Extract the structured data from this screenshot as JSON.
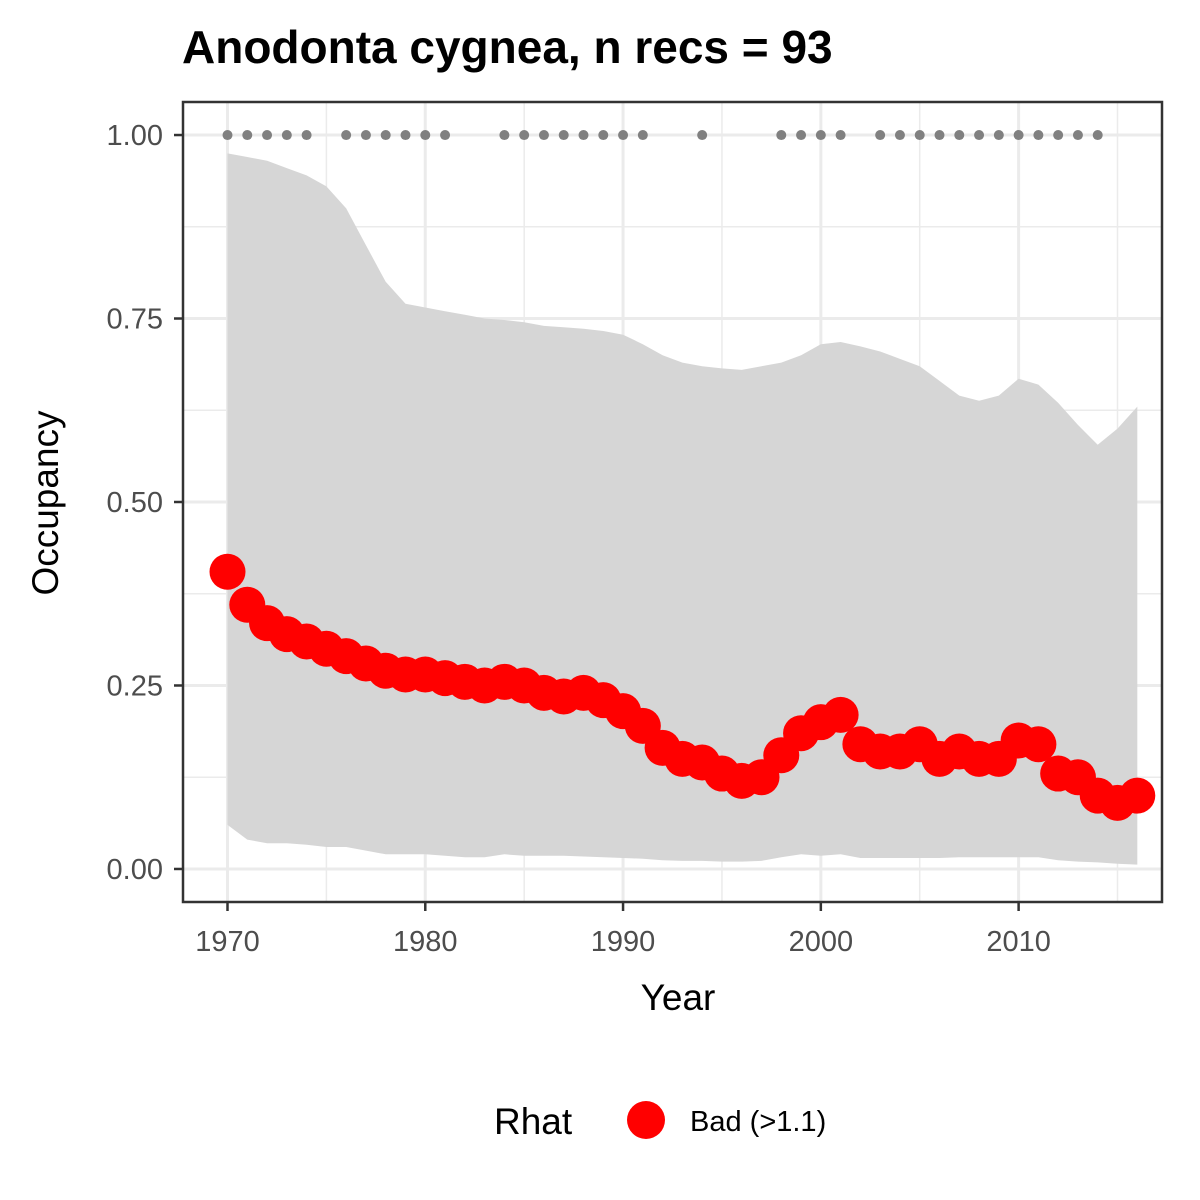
{
  "chart_data": {
    "type": "line",
    "title": "Anodonta cygnea, n recs = 93",
    "xlabel": "Year",
    "ylabel": "Occupancy",
    "xlim": [
      1967.75,
      2017.25
    ],
    "ylim": [
      -0.045,
      1.045
    ],
    "x_ticks": [
      1970,
      1980,
      1990,
      2000,
      2010
    ],
    "y_ticks": [
      0,
      0.25,
      0.5,
      0.75,
      1.0
    ],
    "x_tick_labels": [
      "1970",
      "1980",
      "1990",
      "2000",
      "2010"
    ],
    "y_tick_labels": [
      "0.00",
      "0.25",
      "0.50",
      "0.75",
      "1.00"
    ],
    "grid": true,
    "legend": {
      "title": "Rhat",
      "position": "bottom",
      "entries": [
        {
          "label": "Bad (>1.1)",
          "color": "#ff0000"
        }
      ]
    },
    "colors": {
      "series": "#ff0000",
      "ribbon": "#d6d6d6",
      "record_dots": "#808080",
      "grid": "#ebebeb",
      "panel_border": "#333333"
    },
    "series": [
      {
        "x": [
          1970,
          1971,
          1972,
          1973,
          1974,
          1975,
          1976,
          1977,
          1978,
          1979,
          1980,
          1981,
          1982,
          1983,
          1984,
          1985,
          1986,
          1987,
          1988,
          1989,
          1990,
          1991,
          1992,
          1993,
          1994,
          1995,
          1996,
          1997,
          1998,
          1999,
          2000,
          2001,
          2002,
          2003,
          2004,
          2005,
          2006,
          2007,
          2008,
          2009,
          2010,
          2011,
          2012,
          2013,
          2014,
          2015,
          2016
        ],
        "values": [
          0.405,
          0.36,
          0.335,
          0.32,
          0.31,
          0.3,
          0.29,
          0.28,
          0.27,
          0.265,
          0.265,
          0.26,
          0.255,
          0.25,
          0.255,
          0.25,
          0.24,
          0.235,
          0.24,
          0.23,
          0.215,
          0.195,
          0.165,
          0.15,
          0.145,
          0.13,
          0.12,
          0.125,
          0.155,
          0.185,
          0.2,
          0.21,
          0.17,
          0.16,
          0.16,
          0.17,
          0.15,
          0.16,
          0.15,
          0.15,
          0.175,
          0.17,
          0.13,
          0.125,
          0.1,
          0.09,
          0.1
        ],
        "lower": [
          0.06,
          0.04,
          0.035,
          0.035,
          0.033,
          0.03,
          0.03,
          0.025,
          0.02,
          0.02,
          0.02,
          0.018,
          0.016,
          0.016,
          0.02,
          0.018,
          0.018,
          0.018,
          0.017,
          0.016,
          0.015,
          0.014,
          0.012,
          0.011,
          0.011,
          0.01,
          0.01,
          0.011,
          0.016,
          0.02,
          0.018,
          0.02,
          0.015,
          0.015,
          0.015,
          0.015,
          0.015,
          0.016,
          0.016,
          0.016,
          0.016,
          0.016,
          0.012,
          0.01,
          0.009,
          0.007,
          0.006
        ],
        "upper": [
          0.975,
          0.97,
          0.965,
          0.955,
          0.945,
          0.93,
          0.9,
          0.85,
          0.8,
          0.77,
          0.765,
          0.76,
          0.755,
          0.75,
          0.748,
          0.745,
          0.74,
          0.738,
          0.736,
          0.733,
          0.728,
          0.715,
          0.7,
          0.69,
          0.685,
          0.682,
          0.68,
          0.685,
          0.69,
          0.7,
          0.715,
          0.718,
          0.712,
          0.705,
          0.695,
          0.685,
          0.665,
          0.645,
          0.638,
          0.645,
          0.668,
          0.66,
          0.635,
          0.605,
          0.578,
          0.6,
          0.63
        ]
      }
    ],
    "record_years": [
      1970,
      1971,
      1972,
      1973,
      1974,
      1976,
      1977,
      1978,
      1979,
      1980,
      1981,
      1984,
      1985,
      1986,
      1987,
      1988,
      1989,
      1990,
      1991,
      1994,
      1998,
      1999,
      2000,
      2001,
      2003,
      2004,
      2005,
      2006,
      2007,
      2008,
      2009,
      2010,
      2011,
      2012,
      2013,
      2014
    ],
    "record_level": 1.0
  }
}
